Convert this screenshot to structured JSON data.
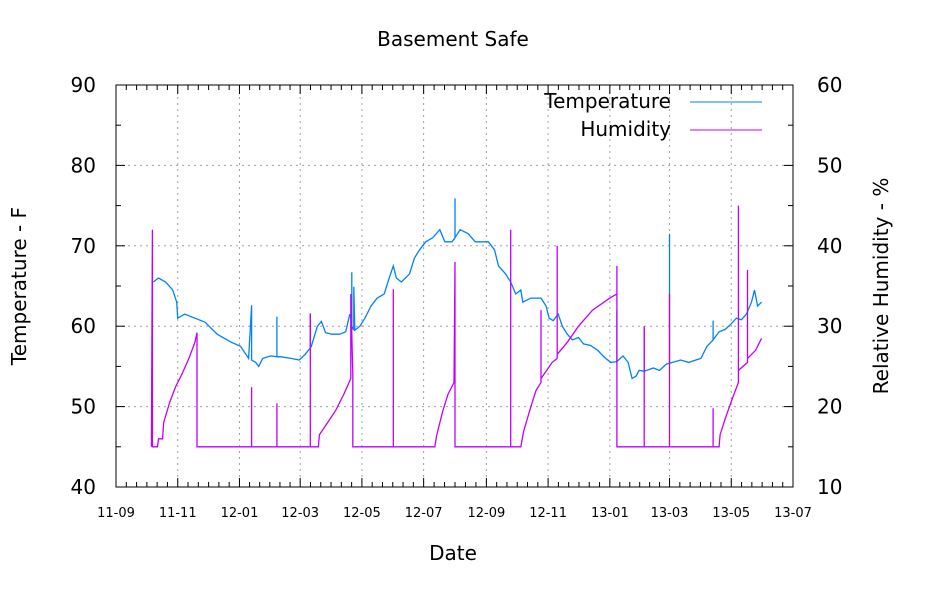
{
  "chart_data": {
    "type": "line",
    "title": "Basement Safe",
    "xlabel": "Date",
    "ylabel": "Temperature - F",
    "y2label": "Relative Humidity - %",
    "xlim": [
      "2011-09-01",
      "2013-07-01"
    ],
    "ylim": [
      40,
      90
    ],
    "y2lim": [
      10,
      60
    ],
    "grid": true,
    "legend_position": "top-right",
    "x_ticks": [
      "11-09",
      "11-11",
      "12-01",
      "12-03",
      "12-05",
      "12-07",
      "12-09",
      "12-11",
      "13-01",
      "13-03",
      "13-05",
      "13-07"
    ],
    "x_tick_dates": [
      "2011-09-01",
      "2011-11-01",
      "2012-01-01",
      "2012-03-01",
      "2012-05-01",
      "2012-07-01",
      "2012-09-01",
      "2012-11-01",
      "2013-01-01",
      "2013-03-01",
      "2013-05-01",
      "2013-07-01"
    ],
    "y_ticks": [
      "40",
      "50",
      "60",
      "70",
      "80",
      "90"
    ],
    "y2_ticks": [
      "10",
      "20",
      "30",
      "40",
      "50",
      "60"
    ],
    "series": [
      {
        "name": "Temperature",
        "axis": "left",
        "color": "#0080ff",
        "points": [
          [
            "2011-10-08",
            65.5
          ],
          [
            "2011-10-13",
            66
          ],
          [
            "2011-10-20",
            65.5
          ],
          [
            "2011-10-27",
            64.5
          ],
          [
            "2011-10-31",
            63
          ],
          [
            "2011-11-01",
            61
          ],
          [
            "2011-11-08",
            61.5
          ],
          [
            "2011-11-18",
            61
          ],
          [
            "2011-11-28",
            60.5
          ],
          [
            "2011-12-02",
            60
          ],
          [
            "2011-12-10",
            59
          ],
          [
            "2011-12-17",
            58.5
          ],
          [
            "2011-12-24",
            58
          ],
          [
            "2012-01-02",
            57.5
          ],
          [
            "2012-01-10",
            56
          ],
          [
            "2012-01-13",
            62.6
          ],
          [
            "2012-01-13",
            55.8
          ],
          [
            "2012-01-17",
            55.5
          ],
          [
            "2012-01-20",
            55
          ],
          [
            "2012-01-24",
            56
          ],
          [
            "2012-02-01",
            56.3
          ],
          [
            "2012-02-07",
            56.2
          ],
          [
            "2012-02-07",
            61.2
          ],
          [
            "2012-02-07",
            56.2
          ],
          [
            "2012-02-11",
            56.2
          ],
          [
            "2012-02-21",
            56
          ],
          [
            "2012-02-29",
            55.8
          ],
          [
            "2012-03-06",
            56.5
          ],
          [
            "2012-03-11",
            57.3
          ],
          [
            "2012-03-11",
            61.6
          ],
          [
            "2012-03-11",
            57.3
          ],
          [
            "2012-03-12",
            57.5
          ],
          [
            "2012-03-18",
            60
          ],
          [
            "2012-03-22",
            60.6
          ],
          [
            "2012-03-26",
            59.2
          ],
          [
            "2012-04-01",
            59
          ],
          [
            "2012-04-09",
            59
          ],
          [
            "2012-04-15",
            59.3
          ],
          [
            "2012-04-19",
            61.5
          ],
          [
            "2012-04-21",
            60.5
          ],
          [
            "2012-04-21",
            66.7
          ],
          [
            "2012-04-21",
            60
          ],
          [
            "2012-04-23",
            59.5
          ],
          [
            "2012-04-23",
            64.9
          ],
          [
            "2012-04-24",
            59.5
          ],
          [
            "2012-04-29",
            60
          ],
          [
            "2012-05-04",
            61
          ],
          [
            "2012-05-10",
            62.5
          ],
          [
            "2012-05-16",
            63.5
          ],
          [
            "2012-05-23",
            64
          ],
          [
            "2012-05-28",
            66
          ],
          [
            "2012-06-01",
            67.5
          ],
          [
            "2012-06-04",
            66
          ],
          [
            "2012-06-09",
            65.5
          ],
          [
            "2012-06-17",
            66.5
          ],
          [
            "2012-06-22",
            68.5
          ],
          [
            "2012-06-27",
            69.5
          ],
          [
            "2012-07-03",
            70.5
          ],
          [
            "2012-07-10",
            71
          ],
          [
            "2012-07-17",
            72
          ],
          [
            "2012-07-22",
            70.5
          ],
          [
            "2012-07-29",
            70.5
          ],
          [
            "2012-08-01",
            71
          ],
          [
            "2012-08-01",
            75.9
          ],
          [
            "2012-08-01",
            71
          ],
          [
            "2012-08-06",
            72
          ],
          [
            "2012-08-14",
            71.5
          ],
          [
            "2012-08-21",
            70.5
          ],
          [
            "2012-08-28",
            70.5
          ],
          [
            "2012-09-03",
            70.5
          ],
          [
            "2012-09-09",
            69.5
          ],
          [
            "2012-09-13",
            67.5
          ],
          [
            "2012-09-20",
            66.5
          ],
          [
            "2012-09-25",
            65.5
          ],
          [
            "2012-09-30",
            64
          ],
          [
            "2012-10-05",
            64.5
          ],
          [
            "2012-10-07",
            63
          ],
          [
            "2012-10-15",
            63.5
          ],
          [
            "2012-10-25",
            63.5
          ],
          [
            "2012-10-30",
            62.5
          ],
          [
            "2012-11-02",
            61
          ],
          [
            "2012-11-06",
            60.7
          ],
          [
            "2012-11-11",
            61.5
          ],
          [
            "2012-11-15",
            60
          ],
          [
            "2012-11-20",
            59
          ],
          [
            "2012-11-25",
            58.3
          ],
          [
            "2012-12-01",
            58.6
          ],
          [
            "2012-12-06",
            57.8
          ],
          [
            "2012-12-13",
            57.6
          ],
          [
            "2012-12-20",
            57
          ],
          [
            "2012-12-26",
            56.2
          ],
          [
            "2013-01-02",
            55.5
          ],
          [
            "2013-01-08",
            55.6
          ],
          [
            "2013-01-08",
            62
          ],
          [
            "2013-01-08",
            55.6
          ],
          [
            "2013-01-14",
            56.3
          ],
          [
            "2013-01-19",
            55.5
          ],
          [
            "2013-01-23",
            53.5
          ],
          [
            "2013-01-27",
            53.8
          ],
          [
            "2013-01-30",
            54.5
          ],
          [
            "2013-02-04",
            54.4
          ],
          [
            "2013-02-04",
            59.8
          ],
          [
            "2013-02-04",
            54.4
          ],
          [
            "2013-02-13",
            54.8
          ],
          [
            "2013-02-19",
            54.5
          ],
          [
            "2013-02-26",
            55.3
          ],
          [
            "2013-03-01",
            55.4
          ],
          [
            "2013-03-01",
            71.5
          ],
          [
            "2013-03-01",
            55.4
          ],
          [
            "2013-03-04",
            55.5
          ],
          [
            "2013-03-12",
            55.8
          ],
          [
            "2013-03-20",
            55.5
          ],
          [
            "2013-03-27",
            55.8
          ],
          [
            "2013-04-01",
            56
          ],
          [
            "2013-04-07",
            57.5
          ],
          [
            "2013-04-13",
            58.3
          ],
          [
            "2013-04-13",
            60.7
          ],
          [
            "2013-04-13",
            58.3
          ],
          [
            "2013-04-19",
            59.3
          ],
          [
            "2013-04-25",
            59.6
          ],
          [
            "2013-05-01",
            60.3
          ],
          [
            "2013-05-06",
            61
          ],
          [
            "2013-05-11",
            60.8
          ],
          [
            "2013-05-16",
            61.5
          ],
          [
            "2013-05-21",
            63
          ],
          [
            "2013-05-24",
            64.5
          ],
          [
            "2013-05-27",
            62.5
          ],
          [
            "2013-05-31",
            63
          ]
        ]
      },
      {
        "name": "Humidity",
        "axis": "right",
        "color": "#c000ff",
        "points": [
          [
            "2011-10-06",
            15
          ],
          [
            "2011-10-07",
            42
          ],
          [
            "2011-10-07",
            15
          ],
          [
            "2011-10-12",
            15
          ],
          [
            "2011-10-13",
            16
          ],
          [
            "2011-10-17",
            16
          ],
          [
            "2011-10-18",
            18
          ],
          [
            "2011-10-24",
            20.5
          ],
          [
            "2011-10-30",
            22.5
          ],
          [
            "2011-11-05",
            24
          ],
          [
            "2011-11-12",
            26
          ],
          [
            "2011-11-18",
            28
          ],
          [
            "2011-11-20",
            29.2
          ],
          [
            "2011-11-20",
            15
          ],
          [
            "2012-01-13",
            15
          ],
          [
            "2012-01-13",
            22.4
          ],
          [
            "2012-01-13",
            15
          ],
          [
            "2012-02-07",
            15
          ],
          [
            "2012-02-07",
            20.4
          ],
          [
            "2012-02-07",
            15
          ],
          [
            "2012-03-11",
            15
          ],
          [
            "2012-03-11",
            31.5
          ],
          [
            "2012-03-11",
            15
          ],
          [
            "2012-03-19",
            15
          ],
          [
            "2012-03-20",
            16.5
          ],
          [
            "2012-03-28",
            18
          ],
          [
            "2012-04-05",
            19.5
          ],
          [
            "2012-04-13",
            21.5
          ],
          [
            "2012-04-20",
            23.5
          ],
          [
            "2012-04-20",
            34
          ],
          [
            "2012-04-22",
            24
          ],
          [
            "2012-04-22",
            15
          ],
          [
            "2012-06-01",
            15
          ],
          [
            "2012-06-01",
            34.6
          ],
          [
            "2012-06-01",
            15
          ],
          [
            "2012-07-12",
            15
          ],
          [
            "2012-07-14",
            16.5
          ],
          [
            "2012-07-20",
            19.5
          ],
          [
            "2012-07-25",
            21.5
          ],
          [
            "2012-07-31",
            23
          ],
          [
            "2012-08-01",
            38
          ],
          [
            "2012-08-01",
            15
          ],
          [
            "2012-09-25",
            15
          ],
          [
            "2012-09-25",
            42
          ],
          [
            "2012-09-25",
            15
          ],
          [
            "2012-10-05",
            15
          ],
          [
            "2012-10-08",
            17
          ],
          [
            "2012-10-15",
            20
          ],
          [
            "2012-10-20",
            22
          ],
          [
            "2012-10-25",
            23
          ],
          [
            "2012-10-25",
            32
          ],
          [
            "2012-10-25",
            23.5
          ],
          [
            "2012-11-05",
            25.5
          ],
          [
            "2012-11-10",
            26
          ],
          [
            "2012-11-10",
            40
          ],
          [
            "2012-11-10",
            26.5
          ],
          [
            "2012-11-20",
            28
          ],
          [
            "2012-12-01",
            30
          ],
          [
            "2012-12-15",
            32
          ],
          [
            "2013-01-01",
            33.5
          ],
          [
            "2013-01-08",
            34
          ],
          [
            "2013-01-08",
            37.5
          ],
          [
            "2013-01-08",
            15
          ],
          [
            "2013-02-04",
            15
          ],
          [
            "2013-02-04",
            30
          ],
          [
            "2013-02-04",
            15
          ],
          [
            "2013-03-01",
            15
          ],
          [
            "2013-03-01",
            34
          ],
          [
            "2013-03-01",
            15
          ],
          [
            "2013-04-13",
            15
          ],
          [
            "2013-04-13",
            19.8
          ],
          [
            "2013-04-13",
            15
          ],
          [
            "2013-04-19",
            15
          ],
          [
            "2013-04-20",
            16.5
          ],
          [
            "2013-04-25",
            18.5
          ],
          [
            "2013-05-02",
            21
          ],
          [
            "2013-05-08",
            23
          ],
          [
            "2013-05-08",
            45
          ],
          [
            "2013-05-08",
            24.5
          ],
          [
            "2013-05-17",
            25.5
          ],
          [
            "2013-05-17",
            37
          ],
          [
            "2013-05-17",
            26
          ],
          [
            "2013-05-25",
            27
          ],
          [
            "2013-05-31",
            28.5
          ]
        ]
      }
    ]
  }
}
